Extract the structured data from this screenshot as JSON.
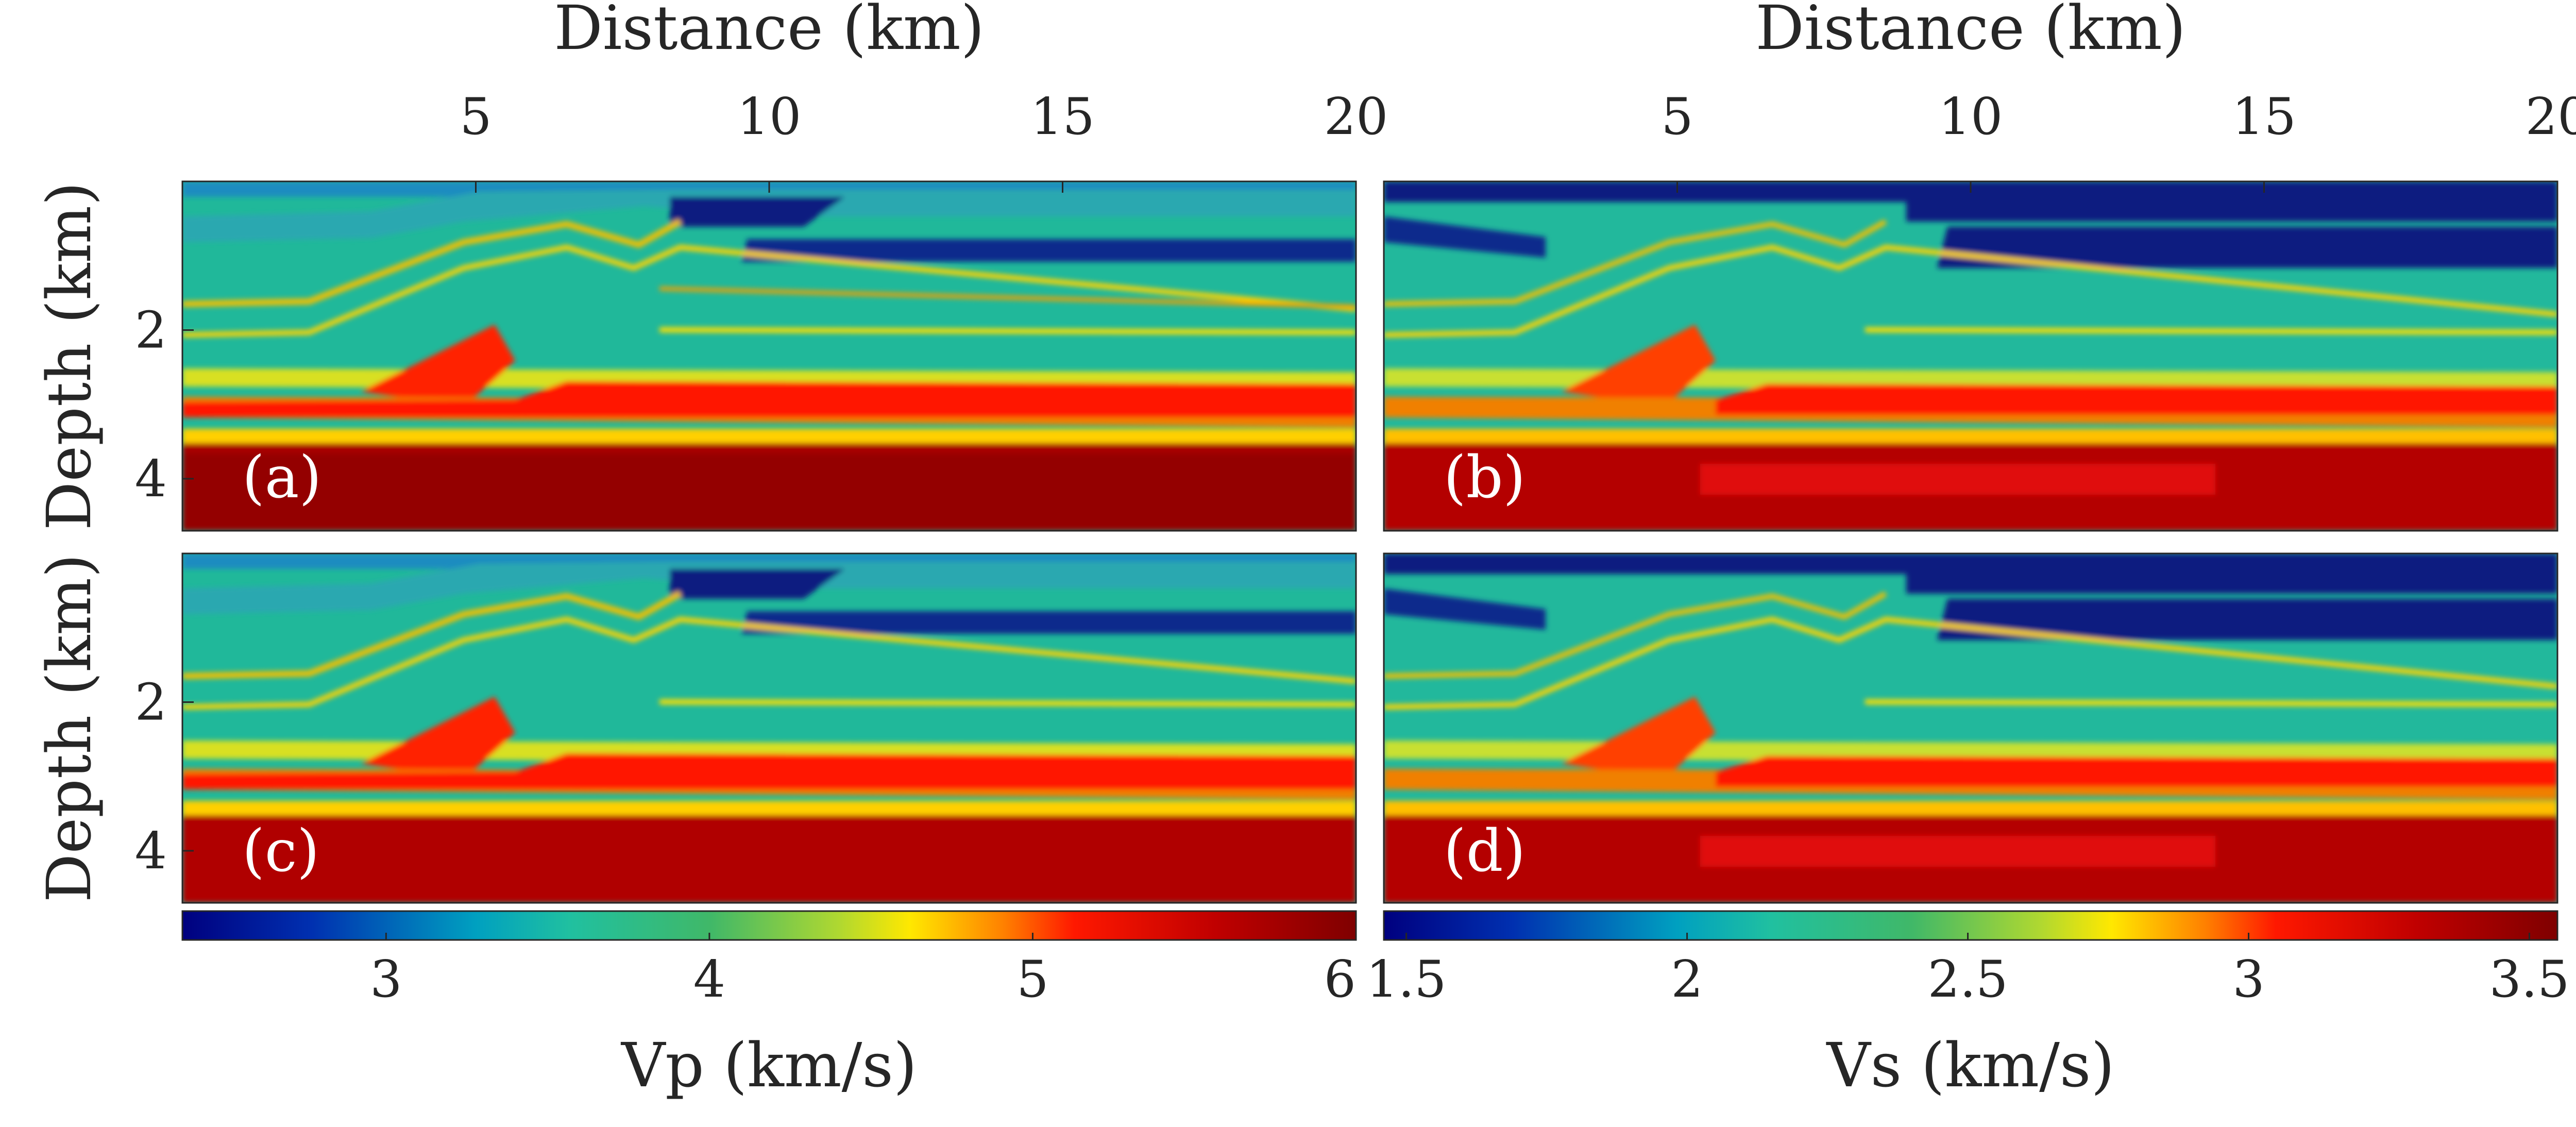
{
  "chart_data": [
    {
      "type": "heatmap",
      "panel_label": "(a)",
      "quantity": "vp",
      "xlabel": "Distance (km)",
      "ylabel": "Depth (km)",
      "x_ticks": [
        "5",
        "10",
        "15",
        "20"
      ],
      "y_ticks": [
        "2",
        "4"
      ],
      "xlim": [
        0,
        20
      ],
      "ylim": [
        0,
        4.7
      ],
      "colormap": "jet"
    },
    {
      "type": "heatmap",
      "panel_label": "(b)",
      "quantity": "vs",
      "xlabel": "Distance (km)",
      "ylabel": "",
      "x_ticks": [
        "5",
        "10",
        "15",
        "20"
      ],
      "y_ticks": [],
      "xlim": [
        0,
        20
      ],
      "ylim": [
        0,
        4.7
      ],
      "colormap": "jet"
    },
    {
      "type": "heatmap",
      "panel_label": "(c)",
      "quantity": "vp",
      "xlabel": "",
      "ylabel": "Depth (km)",
      "x_ticks": [],
      "y_ticks": [
        "2",
        "4"
      ],
      "xlim": [
        0,
        20
      ],
      "ylim": [
        0,
        4.7
      ],
      "colormap": "jet"
    },
    {
      "type": "heatmap",
      "panel_label": "(d)",
      "quantity": "vs",
      "xlabel": "",
      "ylabel": "",
      "x_ticks": [],
      "y_ticks": [],
      "xlim": [
        0,
        20
      ],
      "ylim": [
        0,
        4.7
      ],
      "colormap": "jet"
    }
  ],
  "colorbars": [
    {
      "label": "Vp (km/s)",
      "ticks": [
        "3",
        "4",
        "5",
        "6"
      ],
      "tick_values": [
        3,
        4,
        5,
        6
      ],
      "range": [
        2.37,
        6
      ]
    },
    {
      "label": "Vs (km/s)",
      "ticks": [
        "1.5",
        "2",
        "2.5",
        "3",
        "3.5"
      ],
      "tick_values": [
        1.5,
        2,
        2.5,
        3,
        3.5
      ],
      "range": [
        1.46,
        3.55
      ]
    }
  ],
  "colors": {
    "jet_stops": [
      "#00007f",
      "#0040c0",
      "#00a0c8",
      "#20c090",
      "#60c860",
      "#f0e000",
      "#ff7000",
      "#e80000",
      "#7f0000"
    ]
  }
}
